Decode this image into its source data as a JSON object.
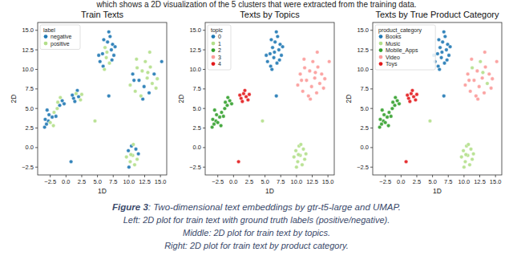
{
  "header_text": "which shows a 2D visualization of the 5 clusters that were extracted from the training data.",
  "chart_data": [
    {
      "type": "scatter",
      "title": "Train Texts",
      "x_label": "1D",
      "y_label": "2D",
      "legend_title": "label",
      "legend": "upper left",
      "grid": false,
      "marker": "circle",
      "xlim": [
        -4.5,
        16
      ],
      "ylim": [
        -3.5,
        16
      ],
      "xticks": [
        {
          "value": -2.5,
          "label": "−2.5"
        },
        {
          "value": 0,
          "label": "0.0"
        },
        2.5,
        {
          "value": 5,
          "label": "5.0"
        },
        7.5,
        {
          "value": 10,
          "label": "10.0"
        },
        12.5,
        {
          "value": 15,
          "label": "15.0"
        }
      ],
      "yticks": [
        {
          "value": -2.5,
          "label": "−2.5"
        },
        {
          "value": 0,
          "label": "0.0"
        },
        2.5,
        {
          "value": 5,
          "label": "5.0"
        },
        7.5,
        {
          "value": 10,
          "label": "10.0"
        },
        12.5,
        {
          "value": 15,
          "label": "15.0"
        }
      ],
      "series": [
        {
          "name": "negative",
          "color": "#1f78b4",
          "x": [
            -3.4,
            -3.1,
            -2.8,
            -3.3,
            -2.2,
            -2.7,
            -1.6,
            -1.0,
            -0.6,
            -0.3,
            -3.0,
            1.2,
            2.0,
            1.8,
            1.4,
            1.0,
            0.8,
            5.4,
            5.8,
            6.6,
            7.0,
            7.2,
            7.6,
            5.9,
            7.4,
            6.0,
            7.8,
            5.2,
            6.8,
            7.3,
            6.8,
            10.6,
            11.6,
            12.4,
            13.2,
            14.0,
            12.2,
            10.8,
            15.2,
            9.9,
            10.4,
            11.1,
            10.0,
            11.5
          ],
          "values": [
            2.6,
            3.0,
            3.4,
            3.6,
            3.9,
            4.2,
            4.0,
            5.4,
            6.0,
            5.6,
            4.8,
            6.3,
            6.5,
            7.3,
            5.9,
            6.7,
            -1.8,
            11.0,
            12.0,
            13.5,
            14.2,
            12.5,
            11.8,
            10.4,
            13.2,
            13.8,
            12.9,
            11.8,
            14.8,
            11.2,
            6.6,
            9.4,
            8.6,
            7.8,
            7.0,
            9.4,
            6.2,
            8.6,
            11.0,
            -0.4,
            0.2,
            -0.2,
            -2.5,
            -0.8
          ]
        },
        {
          "name": "positive",
          "color": "#b2df8a",
          "x": [
            -2.5,
            -1.9,
            -1.4,
            -1.3,
            -0.9,
            -2.0,
            1.6,
            2.3,
            2.5,
            6.2,
            6.4,
            6.9,
            6.5,
            6.1,
            10.2,
            11.0,
            11.3,
            11.9,
            12.1,
            12.6,
            12.9,
            13.4,
            13.7,
            14.3,
            11.2,
            13.0,
            14.5,
            13.3,
            9.6,
            10.2,
            10.6,
            10.9,
            11.3,
            10.7,
            10.3,
            4.6
          ],
          "values": [
            3.2,
            4.5,
            5.0,
            5.8,
            6.4,
            2.8,
            6.9,
            6.1,
            6.8,
            12.8,
            11.5,
            10.8,
            12.2,
            10.0,
            8.0,
            7.2,
            10.2,
            6.6,
            9.8,
            11.0,
            8.9,
            10.3,
            8.2,
            7.6,
            11.3,
            9.6,
            8.8,
            12.2,
            -1.2,
            -1.8,
            -1.0,
            -2.2,
            -1.5,
            0.4,
            -0.9,
            3.4
          ]
        }
      ]
    },
    {
      "type": "scatter",
      "title": "Texts by Topics",
      "x_label": "1D",
      "y_label": "2D",
      "legend_title": "topic",
      "legend": "upper left",
      "grid": false,
      "marker": "circle",
      "xlim": [
        -4.5,
        16
      ],
      "ylim": [
        -3.5,
        16
      ],
      "xticks": [
        {
          "value": -2.5,
          "label": "−2.5"
        },
        {
          "value": 0,
          "label": "0.0"
        },
        2.5,
        {
          "value": 5,
          "label": "5.0"
        },
        7.5,
        {
          "value": 10,
          "label": "10.0"
        },
        12.5,
        {
          "value": 15,
          "label": "15.0"
        }
      ],
      "yticks": [
        {
          "value": -2.5,
          "label": "−2.5"
        },
        {
          "value": 0,
          "label": "0.0"
        },
        2.5,
        {
          "value": 5,
          "label": "5.0"
        },
        7.5,
        {
          "value": 10,
          "label": "10.0"
        },
        12.5,
        {
          "value": 15,
          "label": "15.0"
        }
      ],
      "series": [
        {
          "name": "0",
          "color": "#1f78b4",
          "x": [
            5.4,
            5.8,
            6.2,
            6.6,
            7.0,
            6.4,
            7.2,
            7.6,
            5.9,
            6.9,
            7.4,
            6.0,
            7.8,
            6.5,
            5.2,
            6.8,
            7.3,
            6.1,
            6.8
          ],
          "values": [
            11.0,
            12.0,
            12.8,
            13.5,
            14.2,
            11.5,
            12.5,
            11.8,
            10.4,
            10.8,
            13.2,
            13.8,
            12.9,
            12.2,
            11.8,
            14.8,
            11.2,
            10.0,
            6.6
          ]
        },
        {
          "name": "1",
          "color": "#b2df8a",
          "x": [
            9.6,
            9.9,
            10.2,
            10.4,
            10.6,
            10.9,
            11.1,
            11.3,
            10.0,
            10.7,
            11.5,
            10.3,
            4.6
          ],
          "values": [
            -1.2,
            -0.4,
            -1.8,
            0.2,
            -1.0,
            -2.2,
            -0.2,
            -1.5,
            -2.5,
            0.4,
            -0.8,
            -0.9,
            3.4
          ]
        },
        {
          "name": "2",
          "color": "#33a02c",
          "x": [
            -3.4,
            -3.1,
            -2.8,
            -3.3,
            -2.5,
            -2.2,
            -2.7,
            -1.9,
            -1.6,
            -1.4,
            -1.0,
            -1.3,
            -0.6,
            -0.9,
            -0.3,
            -2.0,
            -3.0
          ],
          "values": [
            2.6,
            3.0,
            3.4,
            3.6,
            3.2,
            3.9,
            4.2,
            4.5,
            4.0,
            5.0,
            5.4,
            5.8,
            6.0,
            6.4,
            5.6,
            2.8,
            4.8
          ]
        },
        {
          "name": "3",
          "color": "#fb9a99",
          "x": [
            10.2,
            10.6,
            11.0,
            11.3,
            11.6,
            11.9,
            12.1,
            12.4,
            12.6,
            12.9,
            13.2,
            13.4,
            13.7,
            14.0,
            14.3,
            11.2,
            12.2,
            13.0,
            10.8,
            14.5,
            15.2,
            13.3
          ],
          "values": [
            8.0,
            9.4,
            7.2,
            10.2,
            8.6,
            6.6,
            9.8,
            7.8,
            11.0,
            8.9,
            7.0,
            10.3,
            8.2,
            9.4,
            7.6,
            11.3,
            6.2,
            9.6,
            8.6,
            8.8,
            11.0,
            12.2
          ]
        },
        {
          "name": "4",
          "color": "#e31a1c",
          "x": [
            1.2,
            1.6,
            2.0,
            1.8,
            2.3,
            1.4,
            2.5,
            1.0,
            0.8
          ],
          "values": [
            6.3,
            6.9,
            6.5,
            7.3,
            6.1,
            5.9,
            6.8,
            6.7,
            -1.8
          ]
        }
      ]
    },
    {
      "type": "scatter",
      "title": "Texts by True Product Category",
      "x_label": "1D",
      "y_label": "2D",
      "legend_title": "product_category",
      "legend": "upper left",
      "grid": false,
      "marker": "circle",
      "xlim": [
        -4.5,
        16
      ],
      "ylim": [
        -3.5,
        16
      ],
      "xticks": [
        {
          "value": -2.5,
          "label": "−2.5"
        },
        {
          "value": 0,
          "label": "0.0"
        },
        2.5,
        {
          "value": 5,
          "label": "5.0"
        },
        7.5,
        {
          "value": 10,
          "label": "10.0"
        },
        12.5,
        {
          "value": 15,
          "label": "15.0"
        }
      ],
      "yticks": [
        {
          "value": -2.5,
          "label": "−2.5"
        },
        {
          "value": 0,
          "label": "0.0"
        },
        2.5,
        {
          "value": 5,
          "label": "5.0"
        },
        7.5,
        {
          "value": 10,
          "label": "10.0"
        },
        12.5,
        {
          "value": 15,
          "label": "15.0"
        }
      ],
      "series": [
        {
          "name": "Books",
          "color": "#1f78b4",
          "x": [
            5.4,
            5.8,
            6.2,
            6.6,
            7.0,
            6.4,
            7.2,
            7.6,
            5.9,
            6.9,
            7.4,
            6.0,
            7.8,
            6.5,
            5.2,
            6.8,
            7.3,
            6.1,
            6.8
          ],
          "values": [
            11.0,
            12.0,
            12.8,
            13.5,
            14.2,
            11.5,
            12.5,
            11.8,
            10.4,
            10.8,
            13.2,
            13.8,
            12.9,
            12.2,
            11.8,
            14.8,
            11.2,
            10.0,
            6.6
          ]
        },
        {
          "name": "Music",
          "color": "#b2df8a",
          "x": [
            9.6,
            9.9,
            10.2,
            10.4,
            10.6,
            10.9,
            11.1,
            11.3,
            10.0,
            10.7,
            11.5,
            10.3,
            4.6,
            11.3,
            12.6,
            13.7,
            13.0
          ],
          "values": [
            -1.2,
            -0.4,
            -1.8,
            0.2,
            -1.0,
            -2.2,
            -0.2,
            -1.5,
            -2.5,
            0.4,
            -0.8,
            -0.9,
            3.4,
            10.2,
            11.0,
            8.2,
            9.6
          ]
        },
        {
          "name": "Mobile_Apps",
          "color": "#33a02c",
          "x": [
            -3.4,
            -3.1,
            -2.8,
            -3.3,
            -2.5,
            -2.2,
            -2.7,
            -1.9,
            -1.6,
            -1.4,
            -1.0,
            -1.3,
            -0.6,
            -0.9,
            -0.3,
            -2.0,
            -3.0
          ],
          "values": [
            2.6,
            3.0,
            3.4,
            3.6,
            3.2,
            3.9,
            4.2,
            4.5,
            4.0,
            5.0,
            5.4,
            5.8,
            6.0,
            6.4,
            5.6,
            2.8,
            4.8
          ]
        },
        {
          "name": "Video",
          "color": "#fb9a99",
          "x": [
            10.2,
            10.6,
            11.0,
            11.6,
            11.9,
            12.1,
            12.4,
            12.9,
            13.2,
            13.4,
            14.0,
            14.3,
            11.2,
            12.2,
            10.8,
            14.5,
            15.2,
            13.3
          ],
          "values": [
            8.0,
            9.4,
            7.2,
            8.6,
            6.6,
            9.8,
            7.8,
            8.9,
            7.0,
            10.3,
            9.4,
            7.6,
            11.3,
            6.2,
            8.6,
            8.8,
            11.0,
            12.2
          ]
        },
        {
          "name": "Toys",
          "color": "#e31a1c",
          "x": [
            1.2,
            1.6,
            2.0,
            1.8,
            2.3,
            1.4,
            2.5,
            1.0,
            0.8
          ],
          "values": [
            6.3,
            6.9,
            6.5,
            7.3,
            6.1,
            5.9,
            6.8,
            6.7,
            -1.8
          ]
        }
      ]
    }
  ],
  "caption": {
    "label": "Figure 3",
    "lines": [
      ": Two-dimensional text embeddings by gtr-t5-large and UMAP.",
      "Left: 2D plot for train text with ground truth labels (positive/negative).",
      "Middle: 2D plot for train text by topics.",
      "Right: 2D plot for train text by product category."
    ]
  }
}
